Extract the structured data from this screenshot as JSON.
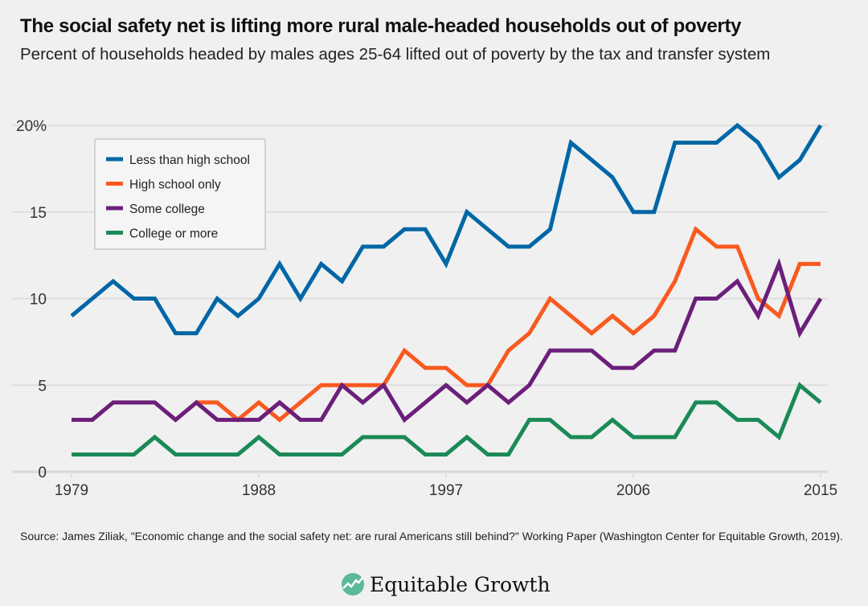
{
  "header": {
    "title": "The social safety net is lifting more rural male-headed households out of poverty",
    "subtitle": "Percent of households headed by males ages 25-64 lifted out of poverty by the tax and transfer system"
  },
  "source": "Source: James Ziliak, \"Economic change and the social safety net: are rural Americans still behind?\" Working Paper (Washington Center for Equitable Growth, 2019).",
  "logo": {
    "text": "Equitable Growth",
    "icon": "rising-chart-circle-icon",
    "color": "#5bb898"
  },
  "chart_data": {
    "type": "line",
    "title": "The social safety net is lifting more rural male-headed households out of poverty",
    "xlabel": "",
    "ylabel": "",
    "xlim": [
      1979,
      2015
    ],
    "ylim": [
      0,
      20
    ],
    "x_ticks": [
      1979,
      1988,
      1997,
      2006,
      2015
    ],
    "y_ticks": [
      {
        "value": 0,
        "label": "0"
      },
      {
        "value": 5,
        "label": "5"
      },
      {
        "value": 10,
        "label": "10"
      },
      {
        "value": 15,
        "label": "15"
      },
      {
        "value": 20,
        "label": "20%"
      }
    ],
    "grid": "horizontal",
    "legend_placement": "top-left",
    "series": [
      {
        "name": "Less than high school",
        "color": "#0067a5",
        "start_year": 1979,
        "values": [
          9,
          10,
          11,
          10,
          10,
          8,
          8,
          10,
          9,
          10,
          12,
          10,
          12,
          11,
          13,
          13,
          14,
          14,
          12,
          15,
          14,
          13,
          13,
          14,
          19,
          18,
          17,
          15,
          15,
          19,
          19,
          19,
          20,
          19,
          17,
          18,
          20
        ]
      },
      {
        "name": "High school only",
        "color": "#f95a1f",
        "start_year": 1985,
        "values": [
          4,
          4,
          3,
          4,
          3,
          4,
          5,
          5,
          5,
          5,
          7,
          6,
          6,
          5,
          5,
          7,
          8,
          10,
          9,
          8,
          9,
          8,
          9,
          11,
          14,
          13,
          13,
          10,
          9,
          12,
          12
        ]
      },
      {
        "name": "Some college",
        "color": "#6b1f7a",
        "start_year": 1979,
        "values": [
          3,
          3,
          4,
          4,
          4,
          3,
          4,
          3,
          3,
          3,
          4,
          3,
          3,
          5,
          4,
          5,
          3,
          4,
          5,
          4,
          5,
          4,
          5,
          7,
          7,
          7,
          6,
          6,
          7,
          7,
          10,
          10,
          11,
          9,
          12,
          8,
          10
        ]
      },
      {
        "name": "College or more",
        "color": "#1b8a57",
        "start_year": 1979,
        "values": [
          1,
          1,
          1,
          1,
          2,
          1,
          1,
          1,
          1,
          2,
          1,
          1,
          1,
          1,
          2,
          2,
          2,
          1,
          1,
          2,
          1,
          1,
          3,
          3,
          2,
          2,
          3,
          2,
          2,
          2,
          4,
          4,
          3,
          3,
          2,
          5,
          4
        ]
      }
    ]
  }
}
